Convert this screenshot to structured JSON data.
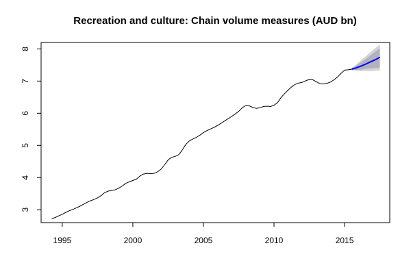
{
  "chart_data": {
    "type": "line",
    "title": "Recreation and culture: Chain volume measures (AUD bn)",
    "xlabel": "",
    "ylabel": "",
    "xlim": [
      1993.5,
      2018.2
    ],
    "ylim": [
      2.6,
      8.2
    ],
    "x_ticks": [
      1995,
      2000,
      2005,
      2010,
      2015
    ],
    "y_ticks": [
      3,
      4,
      5,
      6,
      7,
      8
    ],
    "grid": false,
    "legend": "none",
    "series": [
      {
        "color": "#000000",
        "points": [
          [
            1994.25,
            2.72
          ],
          [
            1994.5,
            2.76
          ],
          [
            1994.75,
            2.81
          ],
          [
            1995.0,
            2.86
          ],
          [
            1995.25,
            2.92
          ],
          [
            1995.5,
            2.97
          ],
          [
            1995.75,
            3.01
          ],
          [
            1996.0,
            3.06
          ],
          [
            1996.25,
            3.11
          ],
          [
            1996.5,
            3.17
          ],
          [
            1996.75,
            3.23
          ],
          [
            1997.0,
            3.28
          ],
          [
            1997.25,
            3.32
          ],
          [
            1997.5,
            3.37
          ],
          [
            1997.75,
            3.44
          ],
          [
            1998.0,
            3.53
          ],
          [
            1998.25,
            3.58
          ],
          [
            1998.5,
            3.6
          ],
          [
            1998.75,
            3.62
          ],
          [
            1999.0,
            3.67
          ],
          [
            1999.25,
            3.74
          ],
          [
            1999.5,
            3.82
          ],
          [
            1999.75,
            3.87
          ],
          [
            2000.0,
            3.91
          ],
          [
            2000.25,
            3.95
          ],
          [
            2000.5,
            4.05
          ],
          [
            2000.75,
            4.11
          ],
          [
            2001.0,
            4.13
          ],
          [
            2001.25,
            4.12
          ],
          [
            2001.5,
            4.13
          ],
          [
            2001.75,
            4.18
          ],
          [
            2002.0,
            4.26
          ],
          [
            2002.25,
            4.4
          ],
          [
            2002.5,
            4.55
          ],
          [
            2002.75,
            4.63
          ],
          [
            2003.0,
            4.66
          ],
          [
            2003.25,
            4.71
          ],
          [
            2003.5,
            4.86
          ],
          [
            2003.75,
            5.03
          ],
          [
            2004.0,
            5.14
          ],
          [
            2004.25,
            5.2
          ],
          [
            2004.5,
            5.25
          ],
          [
            2004.75,
            5.32
          ],
          [
            2005.0,
            5.4
          ],
          [
            2005.25,
            5.46
          ],
          [
            2005.5,
            5.51
          ],
          [
            2005.75,
            5.56
          ],
          [
            2006.0,
            5.62
          ],
          [
            2006.25,
            5.69
          ],
          [
            2006.5,
            5.76
          ],
          [
            2006.75,
            5.83
          ],
          [
            2007.0,
            5.9
          ],
          [
            2007.25,
            5.98
          ],
          [
            2007.5,
            6.06
          ],
          [
            2007.75,
            6.17
          ],
          [
            2008.0,
            6.24
          ],
          [
            2008.25,
            6.23
          ],
          [
            2008.5,
            6.18
          ],
          [
            2008.75,
            6.15
          ],
          [
            2009.0,
            6.17
          ],
          [
            2009.25,
            6.21
          ],
          [
            2009.5,
            6.22
          ],
          [
            2009.75,
            6.21
          ],
          [
            2010.0,
            6.25
          ],
          [
            2010.25,
            6.33
          ],
          [
            2010.5,
            6.49
          ],
          [
            2010.75,
            6.61
          ],
          [
            2011.0,
            6.72
          ],
          [
            2011.25,
            6.82
          ],
          [
            2011.5,
            6.9
          ],
          [
            2011.75,
            6.94
          ],
          [
            2012.0,
            6.96
          ],
          [
            2012.25,
            7.01
          ],
          [
            2012.5,
            7.05
          ],
          [
            2012.75,
            7.04
          ],
          [
            2013.0,
            6.98
          ],
          [
            2013.25,
            6.92
          ],
          [
            2013.5,
            6.91
          ],
          [
            2013.75,
            6.93
          ],
          [
            2014.0,
            6.97
          ],
          [
            2014.25,
            7.04
          ],
          [
            2014.5,
            7.13
          ],
          [
            2014.75,
            7.24
          ],
          [
            2015.0,
            7.34
          ],
          [
            2015.25,
            7.35
          ],
          [
            2015.5,
            7.37
          ]
        ]
      },
      {
        "color": "#0000ee",
        "points": [
          [
            2015.5,
            7.37
          ],
          [
            2015.75,
            7.4
          ],
          [
            2016.0,
            7.44
          ],
          [
            2016.25,
            7.48
          ],
          [
            2016.5,
            7.53
          ],
          [
            2016.75,
            7.58
          ],
          [
            2017.0,
            7.63
          ],
          [
            2017.25,
            7.68
          ],
          [
            2017.5,
            7.74
          ]
        ],
        "interval_80": [
          [
            2015.5,
            7.35,
            7.4
          ],
          [
            2015.75,
            7.35,
            7.45
          ],
          [
            2016.0,
            7.35,
            7.54
          ],
          [
            2016.25,
            7.36,
            7.61
          ],
          [
            2016.5,
            7.38,
            7.69
          ],
          [
            2016.75,
            7.39,
            7.77
          ],
          [
            2017.0,
            7.4,
            7.86
          ],
          [
            2017.25,
            7.41,
            7.94
          ],
          [
            2017.5,
            7.42,
            8.02
          ]
        ],
        "interval_95": [
          [
            2015.5,
            7.34,
            7.41
          ],
          [
            2015.75,
            7.32,
            7.49
          ],
          [
            2016.0,
            7.31,
            7.58
          ],
          [
            2016.25,
            7.31,
            7.68
          ],
          [
            2016.5,
            7.31,
            7.77
          ],
          [
            2016.75,
            7.31,
            7.87
          ],
          [
            2017.0,
            7.31,
            7.96
          ],
          [
            2017.25,
            7.32,
            8.05
          ],
          [
            2017.5,
            7.33,
            8.14
          ]
        ]
      }
    ],
    "colors": {
      "interval_95": "#d3d3d8",
      "interval_80": "#b2b2bf",
      "history": "#000000",
      "forecast": "#0000ee"
    }
  }
}
